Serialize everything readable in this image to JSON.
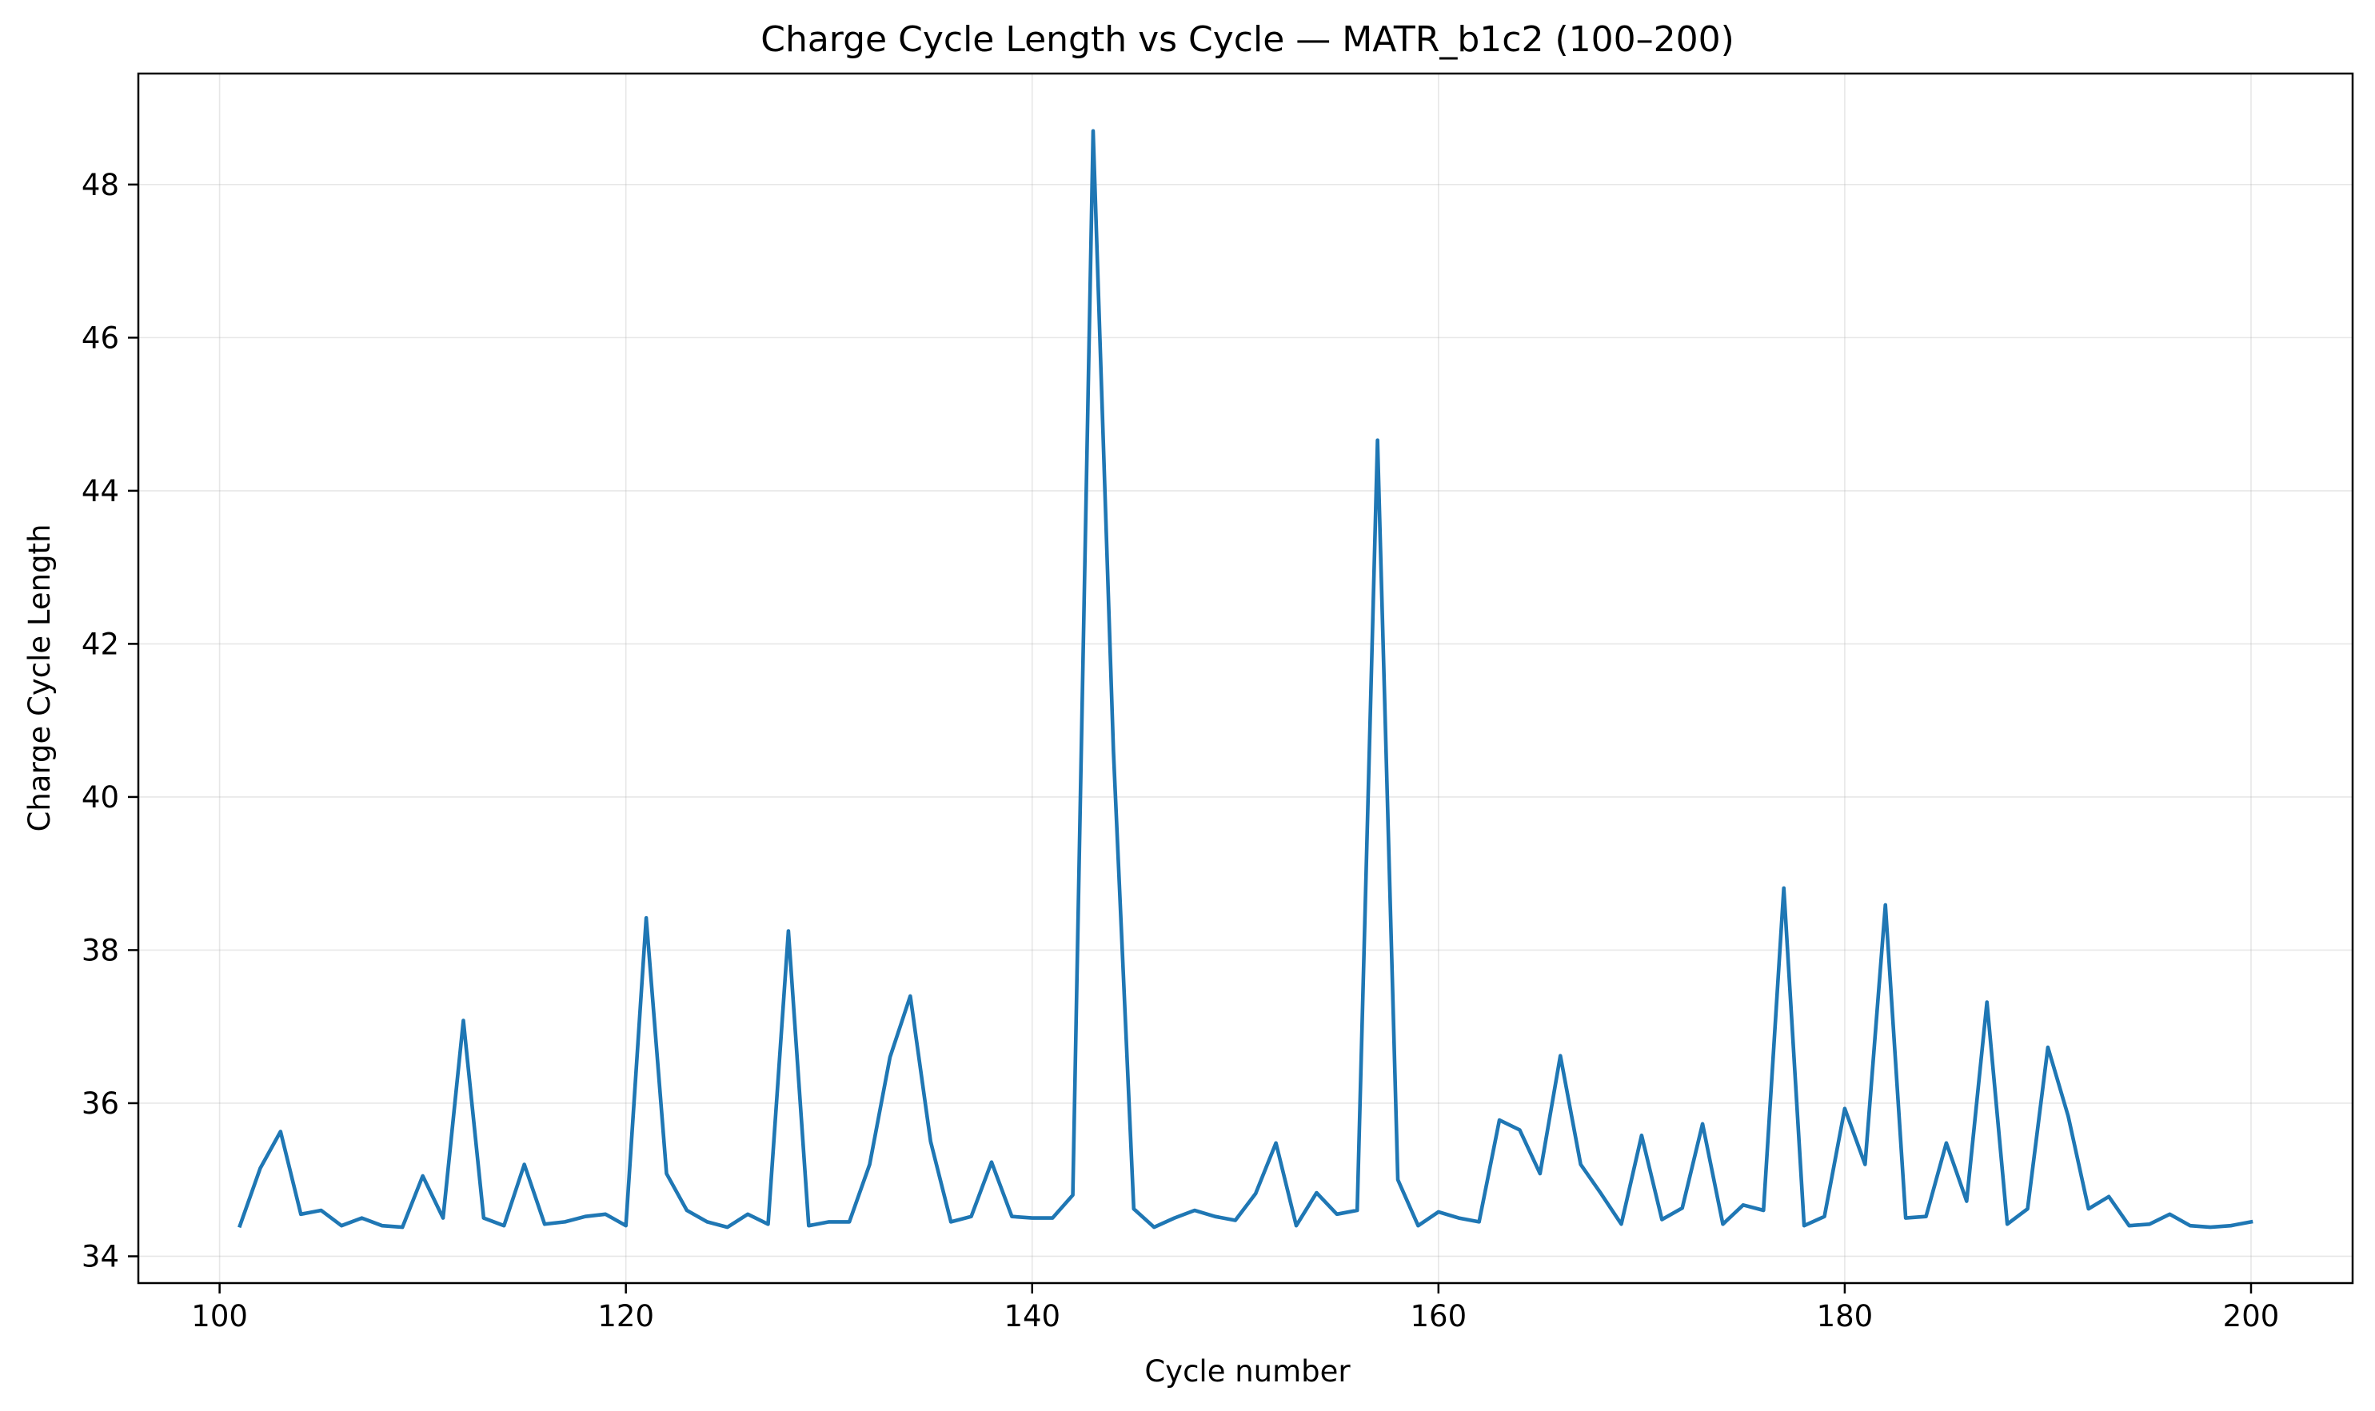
{
  "chart_data": {
    "type": "line",
    "title": "Charge Cycle Length vs Cycle — MATR_b1c2 (100–200)",
    "xlabel": "Cycle number",
    "ylabel": "Charge Cycle Length",
    "xlim": [
      96,
      205
    ],
    "ylim": [
      33.65,
      49.45
    ],
    "xticks": [
      100,
      120,
      140,
      160,
      180,
      200
    ],
    "xtick_labels": [
      "100",
      "120",
      "140",
      "160",
      "180",
      "200"
    ],
    "yticks": [
      34,
      36,
      38,
      40,
      42,
      44,
      46,
      48
    ],
    "ytick_labels": [
      "34",
      "36",
      "38",
      "40",
      "42",
      "44",
      "46",
      "48"
    ],
    "grid": true,
    "line_color": "#1f77b4",
    "x": [
      101,
      102,
      103,
      104,
      105,
      106,
      107,
      108,
      109,
      110,
      111,
      112,
      113,
      114,
      115,
      116,
      117,
      118,
      119,
      120,
      121,
      122,
      123,
      124,
      125,
      126,
      127,
      128,
      129,
      130,
      131,
      132,
      133,
      134,
      135,
      136,
      137,
      138,
      139,
      140,
      141,
      142,
      143,
      144,
      145,
      146,
      147,
      148,
      149,
      150,
      151,
      152,
      153,
      154,
      155,
      156,
      157,
      158,
      159,
      160,
      161,
      162,
      163,
      164,
      165,
      166,
      167,
      168,
      169,
      170,
      171,
      172,
      173,
      174,
      175,
      176,
      177,
      178,
      179,
      180,
      181,
      182,
      183,
      184,
      185,
      186,
      187,
      188,
      189,
      190,
      191,
      192,
      193,
      194,
      195,
      196,
      197,
      198,
      199,
      200
    ],
    "y": [
      34.4,
      35.15,
      35.63,
      34.55,
      34.6,
      34.4,
      34.5,
      34.4,
      34.38,
      35.05,
      34.5,
      37.08,
      34.5,
      34.4,
      35.2,
      34.42,
      34.45,
      34.52,
      34.55,
      34.4,
      38.42,
      35.08,
      34.6,
      34.45,
      34.38,
      34.55,
      34.42,
      38.25,
      34.4,
      34.45,
      34.45,
      35.2,
      36.6,
      37.4,
      35.5,
      34.45,
      34.52,
      35.23,
      34.52,
      34.5,
      34.5,
      34.8,
      48.7,
      40.6,
      34.62,
      34.38,
      34.5,
      34.6,
      34.52,
      34.47,
      34.82,
      35.48,
      34.4,
      34.83,
      34.55,
      34.6,
      44.66,
      35.0,
      34.4,
      34.58,
      34.5,
      34.45,
      35.78,
      35.65,
      35.08,
      36.62,
      35.2,
      34.82,
      34.42,
      35.58,
      34.48,
      34.63,
      35.73,
      34.42,
      34.67,
      34.6,
      38.81,
      34.4,
      34.52,
      35.93,
      35.2,
      38.59,
      34.5,
      34.52,
      35.48,
      34.72,
      37.32,
      34.42,
      34.62,
      36.73,
      35.83,
      34.62,
      34.78,
      34.4,
      34.42,
      34.55,
      34.4,
      34.38,
      34.4,
      34.45
    ]
  }
}
